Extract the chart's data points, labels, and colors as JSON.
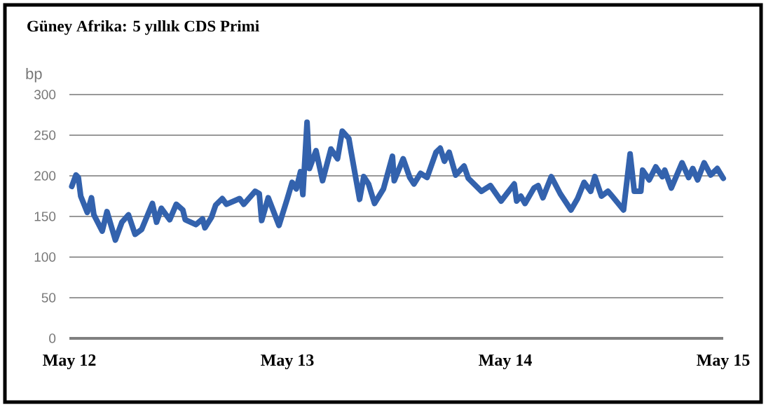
{
  "chart_data": {
    "type": "line",
    "title": "Güney Afrika: 5 yıllık CDS Primi",
    "ylabel": "bp",
    "x": [
      "2012-05-05",
      "2012-05-12",
      "2012-05-16",
      "2012-05-20",
      "2012-05-31",
      "2012-06-07",
      "2012-06-11",
      "2012-06-25",
      "2012-07-03",
      "2012-07-17",
      "2012-07-28",
      "2012-08-08",
      "2012-08-19",
      "2012-08-30",
      "2012-09-17",
      "2012-09-24",
      "2012-10-02",
      "2012-10-16",
      "2012-10-27",
      "2012-11-07",
      "2012-11-11",
      "2012-11-29",
      "2012-12-10",
      "2012-12-14",
      "2012-12-25",
      "2013-01-01",
      "2013-01-12",
      "2013-01-19",
      "2013-02-10",
      "2013-02-17",
      "2013-03-08",
      "2013-03-15",
      "2013-03-19",
      "2013-03-30",
      "2013-04-17",
      "2013-05-01",
      "2013-05-09",
      "2013-05-16",
      "2013-05-23",
      "2013-05-27",
      "2013-06-03",
      "2013-06-07",
      "2013-06-18",
      "2013-06-29",
      "2013-07-13",
      "2013-07-24",
      "2013-08-01",
      "2013-08-12",
      "2013-08-15",
      "2013-08-30",
      "2013-09-06",
      "2013-09-14",
      "2013-09-24",
      "2013-10-09",
      "2013-10-24",
      "2013-10-27",
      "2013-11-11",
      "2013-11-22",
      "2013-11-29",
      "2013-12-10",
      "2013-12-21",
      "2014-01-05",
      "2014-01-12",
      "2014-01-19",
      "2014-01-27",
      "2014-02-07",
      "2014-02-21",
      "2014-02-28",
      "2014-03-22",
      "2014-04-06",
      "2014-04-24",
      "2014-05-16",
      "2014-05-20",
      "2014-05-27",
      "2014-06-03",
      "2014-06-18",
      "2014-06-25",
      "2014-07-03",
      "2014-07-17",
      "2014-08-01",
      "2014-08-19",
      "2014-08-30",
      "2014-09-10",
      "2014-09-21",
      "2014-09-28",
      "2014-10-09",
      "2014-10-20",
      "2014-10-27",
      "2014-11-15",
      "2014-11-26",
      "2014-12-03",
      "2014-12-14",
      "2014-12-17",
      "2014-12-28",
      "2015-01-08",
      "2015-01-19",
      "2015-01-23",
      "2015-02-03",
      "2015-02-21",
      "2015-03-04",
      "2015-03-11",
      "2015-03-19",
      "2015-03-30",
      "2015-04-10",
      "2015-04-21",
      "2015-05-01"
    ],
    "series": [
      {
        "color": "#3362ad",
        "values": [
          187,
          201,
          198,
          175,
          155,
          173,
          152,
          132,
          156,
          121,
          143,
          152,
          128,
          134,
          166,
          143,
          160,
          146,
          165,
          158,
          146,
          140,
          147,
          136,
          149,
          164,
          172,
          165,
          172,
          165,
          181,
          178,
          145,
          173,
          139,
          172,
          192,
          184,
          205,
          177,
          266,
          209,
          231,
          194,
          233,
          221,
          255,
          246,
          233,
          171,
          199,
          190,
          166,
          184,
          224,
          194,
          221,
          198,
          190,
          203,
          198,
          229,
          234,
          218,
          229,
          201,
          212,
          197,
          181,
          188,
          169,
          190,
          169,
          175,
          166,
          185,
          188,
          173,
          199,
          178,
          158,
          172,
          192,
          181,
          199,
          175,
          181,
          175,
          158,
          227,
          181,
          181,
          207,
          195,
          211,
          199,
          207,
          185,
          216,
          198,
          209,
          195,
          216,
          201,
          209,
          197
        ]
      }
    ],
    "xlim": [
      "2012-05-01",
      "2015-05-01"
    ],
    "xticks": [
      {
        "value": "2012-05-01",
        "label": "May 12"
      },
      {
        "value": "2013-05-01",
        "label": "May 13"
      },
      {
        "value": "2014-05-01",
        "label": "May 14"
      },
      {
        "value": "2015-05-01",
        "label": "May 15"
      }
    ],
    "ylim": [
      0,
      300
    ],
    "yticks": [
      0,
      50,
      100,
      150,
      200,
      250,
      300
    ],
    "grid": "y"
  }
}
